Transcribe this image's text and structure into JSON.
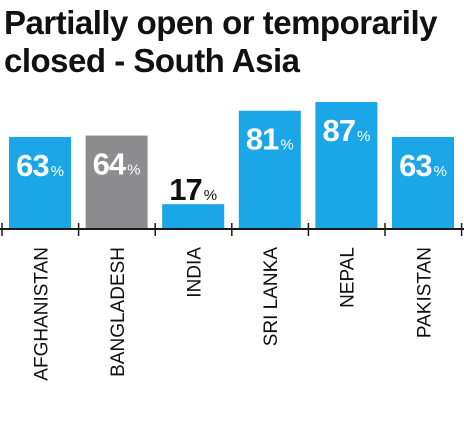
{
  "title_lines": [
    "Partially open or temporarily",
    "closed - South Asia"
  ],
  "colors": {
    "bar": "#1ba6e8",
    "highlight": "#8d8d8f",
    "axis": "#1a1a1a",
    "text": "#111111",
    "label_light": "#ffffff",
    "label_dark": "#111111"
  },
  "chart_data": {
    "type": "bar",
    "title": "Partially open or temporarily closed - South Asia",
    "categories": [
      "AFGHANISTAN",
      "BANGLADESH",
      "INDIA",
      "SRI LANKA",
      "NEPAL",
      "PAKISTAN"
    ],
    "values": [
      63,
      64,
      17,
      81,
      87,
      63
    ],
    "value_suffix": "%",
    "highlighted": [
      "BANGLADESH"
    ],
    "ylim": [
      0,
      100
    ],
    "grid": false,
    "label_orientation": "vertical"
  }
}
